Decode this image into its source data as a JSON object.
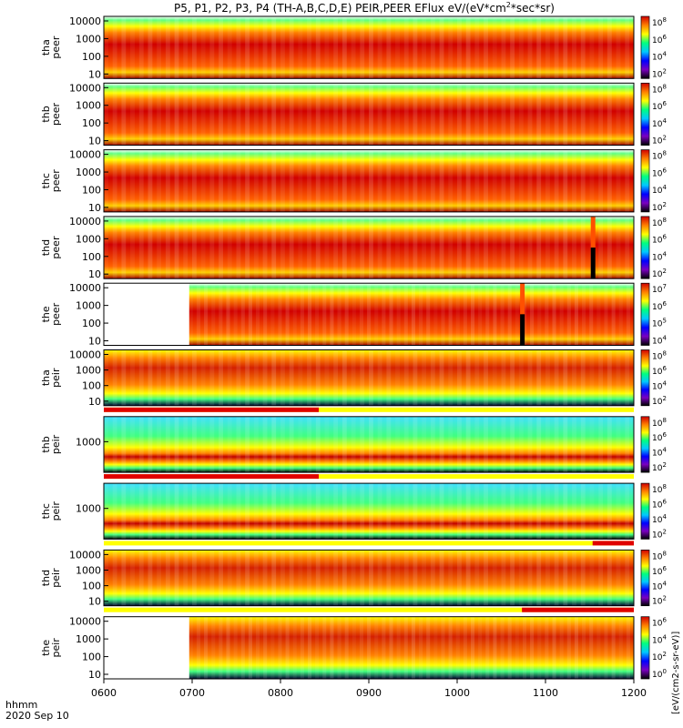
{
  "title": "P5, P1, P2, P3, P4 (TH-A,B,C,D,E) PEIR,PEER EFlux eV/(eV*cm",
  "title_sup": "2",
  "title_tail": "*sec*sr)",
  "chart_data": {
    "type": "heatmap",
    "x_label_row1": "hhmm",
    "x_label_row2": "2020 Sep 10",
    "x_ticks": [
      "0600",
      "0700",
      "0800",
      "0900",
      "1000",
      "1100",
      "1200"
    ],
    "x_range": [
      "0600",
      "1200"
    ],
    "colorbar_colors": [
      "#000000",
      "#7a00c0",
      "#0000ff",
      "#00c8ff",
      "#00ff80",
      "#ffff00",
      "#ff8000",
      "#d00000"
    ],
    "colorbar_axis_label": "[eV/(cm2-s-sr-eV)]",
    "panels": [
      {
        "probe": "tha",
        "species": "peer",
        "ticks": [
          "10000",
          "1000",
          "100",
          "10"
        ],
        "cb_ticks": [
          "10",
          "10",
          "10",
          "10"
        ],
        "cb_exps": [
          "8",
          "6",
          "4",
          "2"
        ],
        "data_start": "0600",
        "spikes": [],
        "flag_bar": false
      },
      {
        "probe": "thb",
        "species": "peer",
        "ticks": [
          "10000",
          "1000",
          "100",
          "10"
        ],
        "cb_ticks": [
          "10",
          "10",
          "10",
          "10"
        ],
        "cb_exps": [
          "8",
          "6",
          "4",
          "2"
        ],
        "data_start": "0600",
        "spikes": [],
        "flag_bar": false
      },
      {
        "probe": "thc",
        "species": "peer",
        "ticks": [
          "10000",
          "1000",
          "100",
          "10"
        ],
        "cb_ticks": [
          "10",
          "10",
          "10",
          "10"
        ],
        "cb_exps": [
          "8",
          "6",
          "4",
          "2"
        ],
        "data_start": "0600",
        "spikes": [],
        "flag_bar": false
      },
      {
        "probe": "thd",
        "species": "peer",
        "ticks": [
          "10000",
          "1000",
          "100",
          "10"
        ],
        "cb_ticks": [
          "10",
          "10",
          "10",
          "10"
        ],
        "cb_exps": [
          "8",
          "6",
          "4",
          "2"
        ],
        "data_start": "0600",
        "spikes": [
          "1132"
        ],
        "flag_bar": false
      },
      {
        "probe": "the",
        "species": "peer",
        "ticks": [
          "10000",
          "1000",
          "100",
          "10"
        ],
        "cb_ticks": [
          "10",
          "10",
          "10",
          "10"
        ],
        "cb_exps": [
          "7",
          "6",
          "5",
          "4"
        ],
        "data_start": "0658",
        "spikes": [
          "1044"
        ],
        "flag_bar": false
      },
      {
        "probe": "tha",
        "species": "peir",
        "ticks": [
          "10000",
          "1000",
          "100",
          "10"
        ],
        "cb_ticks": [
          "10",
          "10",
          "10",
          "10"
        ],
        "cb_exps": [
          "8",
          "6",
          "4",
          "2"
        ],
        "data_start": "0600",
        "spikes": [],
        "flag_bar": true,
        "flag_red_until": "0826"
      },
      {
        "probe": "thb",
        "species": "peir",
        "ticks": [
          "1000"
        ],
        "cb_ticks": [
          "10",
          "10",
          "10",
          "10"
        ],
        "cb_exps": [
          "8",
          "6",
          "4",
          "2"
        ],
        "data_start": "0600",
        "spikes": [],
        "flag_bar": true,
        "flag_red_until": "0826"
      },
      {
        "probe": "thc",
        "species": "peir",
        "ticks": [
          "1000"
        ],
        "cb_ticks": [
          "10",
          "10",
          "10",
          "10"
        ],
        "cb_exps": [
          "8",
          "6",
          "4",
          "2"
        ],
        "data_start": "0600",
        "spikes": [],
        "flag_bar": true,
        "flag_red_from": "1132"
      },
      {
        "probe": "thd",
        "species": "peir",
        "ticks": [
          "10000",
          "1000",
          "100",
          "10"
        ],
        "cb_ticks": [
          "10",
          "10",
          "10",
          "10"
        ],
        "cb_exps": [
          "8",
          "6",
          "4",
          "2"
        ],
        "data_start": "0600",
        "spikes": [],
        "flag_bar": true,
        "flag_red_from": "1044"
      },
      {
        "probe": "the",
        "species": "peir",
        "ticks": [
          "10000",
          "1000",
          "100",
          "10"
        ],
        "cb_ticks": [
          "10",
          "10",
          "10",
          "10"
        ],
        "cb_exps": [
          "6",
          "4",
          "2",
          "0"
        ],
        "data_start": "0658",
        "spikes": [],
        "flag_bar": false
      }
    ]
  }
}
